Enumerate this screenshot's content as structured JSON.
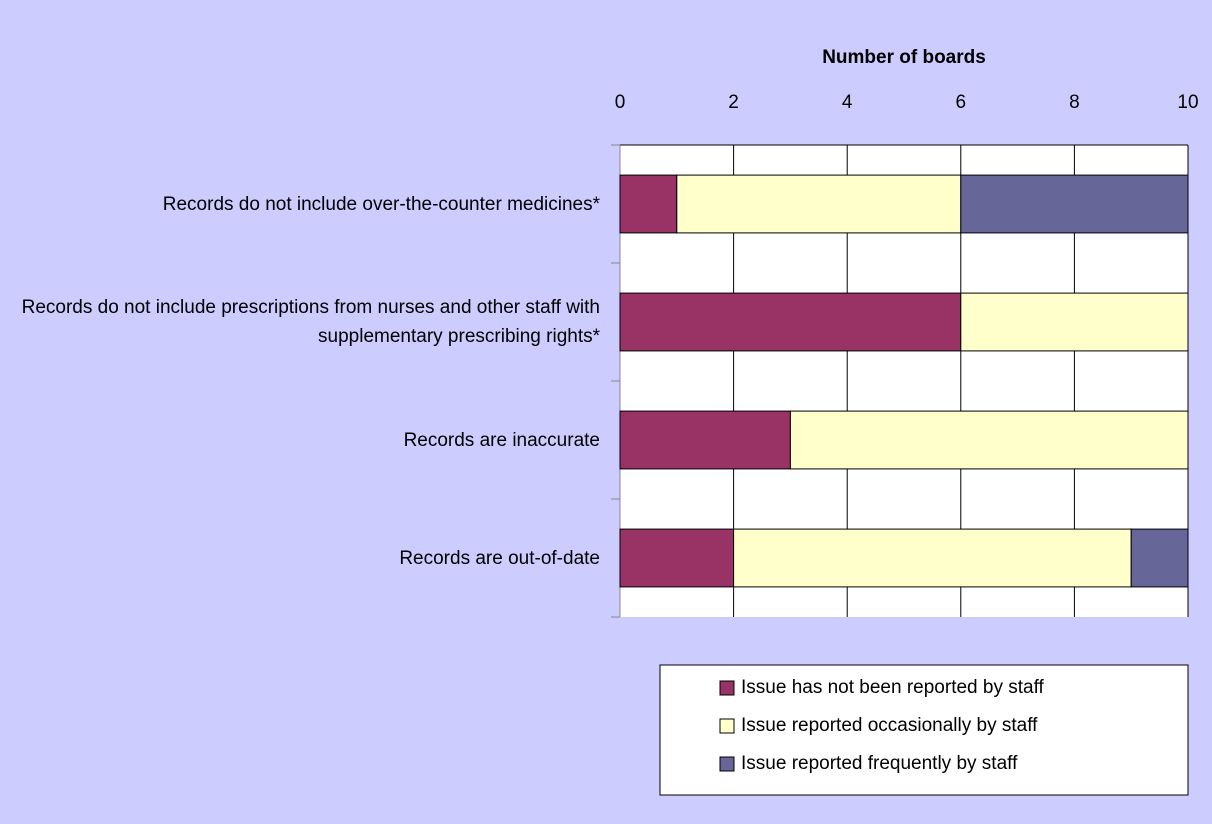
{
  "chart_data": {
    "type": "stacked_barh",
    "x_label": "Number of boards",
    "categories": [
      "Records do not include over-the-counter medicines*",
      "Records do not include prescriptions from nurses and other staff with supplementary prescribing rights*",
      "Records are inaccurate",
      "Records are out-of-date"
    ],
    "series": [
      {
        "name": "Issue has not been reported by staff",
        "color": "#993366",
        "values": [
          1,
          6,
          3,
          2
        ]
      },
      {
        "name": "Issue reported occasionally by staff",
        "color": "#ffffcc",
        "values": [
          5,
          4,
          7,
          7
        ]
      },
      {
        "name": "Issue reported frequently by staff",
        "color": "#666699",
        "values": [
          4,
          0,
          0,
          1
        ]
      }
    ],
    "xlim": [
      0,
      10
    ],
    "xticks": [
      0,
      2,
      4,
      6,
      8,
      10
    ],
    "grid": true,
    "legend": "lower right"
  }
}
